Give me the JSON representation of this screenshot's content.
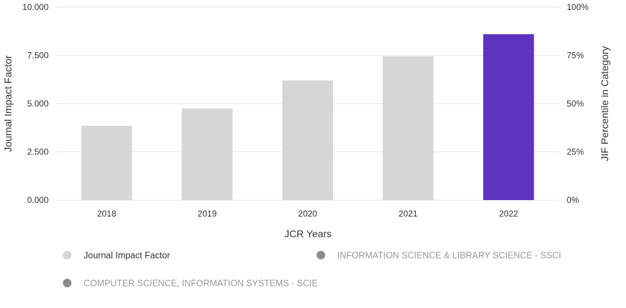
{
  "chart_data": {
    "type": "bar",
    "categories": [
      "2018",
      "2019",
      "2020",
      "2021",
      "2022"
    ],
    "values": [
      3.85,
      4.75,
      6.2,
      7.45,
      8.6
    ],
    "xlabel": "JCR Years",
    "ylabel": "Journal Impact Factor",
    "y2label": "JIF Percentile in Category",
    "ylim": [
      0,
      10
    ],
    "y_ticks": [
      "0.000",
      "2.500",
      "5.000",
      "7.500",
      "10.000"
    ],
    "y_tick_values": [
      0,
      2.5,
      5,
      7.5,
      10
    ],
    "y2_ticks": [
      "0%",
      "25%",
      "50%",
      "75%",
      "100%"
    ],
    "grid": true,
    "bar_color": "#d6d6d6",
    "highlight_color": "#5e33bf",
    "highlight_index": 4,
    "legend_position": "bottom-left",
    "legend": [
      {
        "label": "Journal Impact Factor",
        "marker_color": "#d6d6d6",
        "text_color": "#333333"
      },
      {
        "label": "INFORMATION SCIENCE & LIBRARY SCIENCE - SSCI",
        "marker_color": "#8c8c8c",
        "text_color": "#999999"
      },
      {
        "label": "COMPUTER SCIENCE, INFORMATION SYSTEMS - SCIE",
        "marker_color": "#8c8c8c",
        "text_color": "#999999"
      }
    ]
  }
}
